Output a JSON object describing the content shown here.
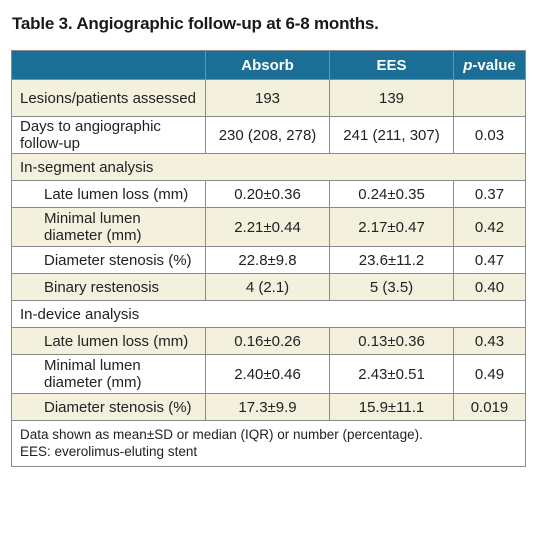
{
  "title": "Table 3. Angiographic follow-up at 6-8 months.",
  "header": {
    "col1": "",
    "col2": "Absorb",
    "col3": "EES",
    "col4_italic": "p",
    "col4_rest": "-value"
  },
  "rows": [
    {
      "label": "Lesions/patients assessed",
      "absorb": "193",
      "ees": "139",
      "p": ""
    },
    {
      "label": "Days to angiographic follow-up",
      "absorb": "230 (208, 278)",
      "ees": "241 (211, 307)",
      "p": "0.03"
    },
    {
      "label": "In-segment analysis"
    },
    {
      "label": "Late lumen loss (mm)",
      "absorb": "0.20±0.36",
      "ees": "0.24±0.35",
      "p": "0.37"
    },
    {
      "label": "Minimal lumen diameter (mm)",
      "absorb": "2.21±0.44",
      "ees": "2.17±0.47",
      "p": "0.42"
    },
    {
      "label": "Diameter stenosis (%)",
      "absorb": "22.8±9.8",
      "ees": "23.6±11.2",
      "p": "0.47"
    },
    {
      "label": "Binary restenosis",
      "absorb": "4 (2.1)",
      "ees": "5 (3.5)",
      "p": "0.40"
    },
    {
      "label": "In-device analysis"
    },
    {
      "label": "Late lumen loss (mm)",
      "absorb": "0.16±0.26",
      "ees": "0.13±0.36",
      "p": "0.43"
    },
    {
      "label": "Minimal lumen diameter (mm)",
      "absorb": "2.40±0.46",
      "ees": "2.43±0.51",
      "p": "0.49"
    },
    {
      "label": "Diameter stenosis (%)",
      "absorb": "17.3±9.9",
      "ees": "15.9±11.1",
      "p": "0.019"
    }
  ],
  "footnote": {
    "line1": "Data shown as mean±SD or median (IQR) or number (percentage).",
    "line2": "EES: everolimus-eluting stent"
  }
}
